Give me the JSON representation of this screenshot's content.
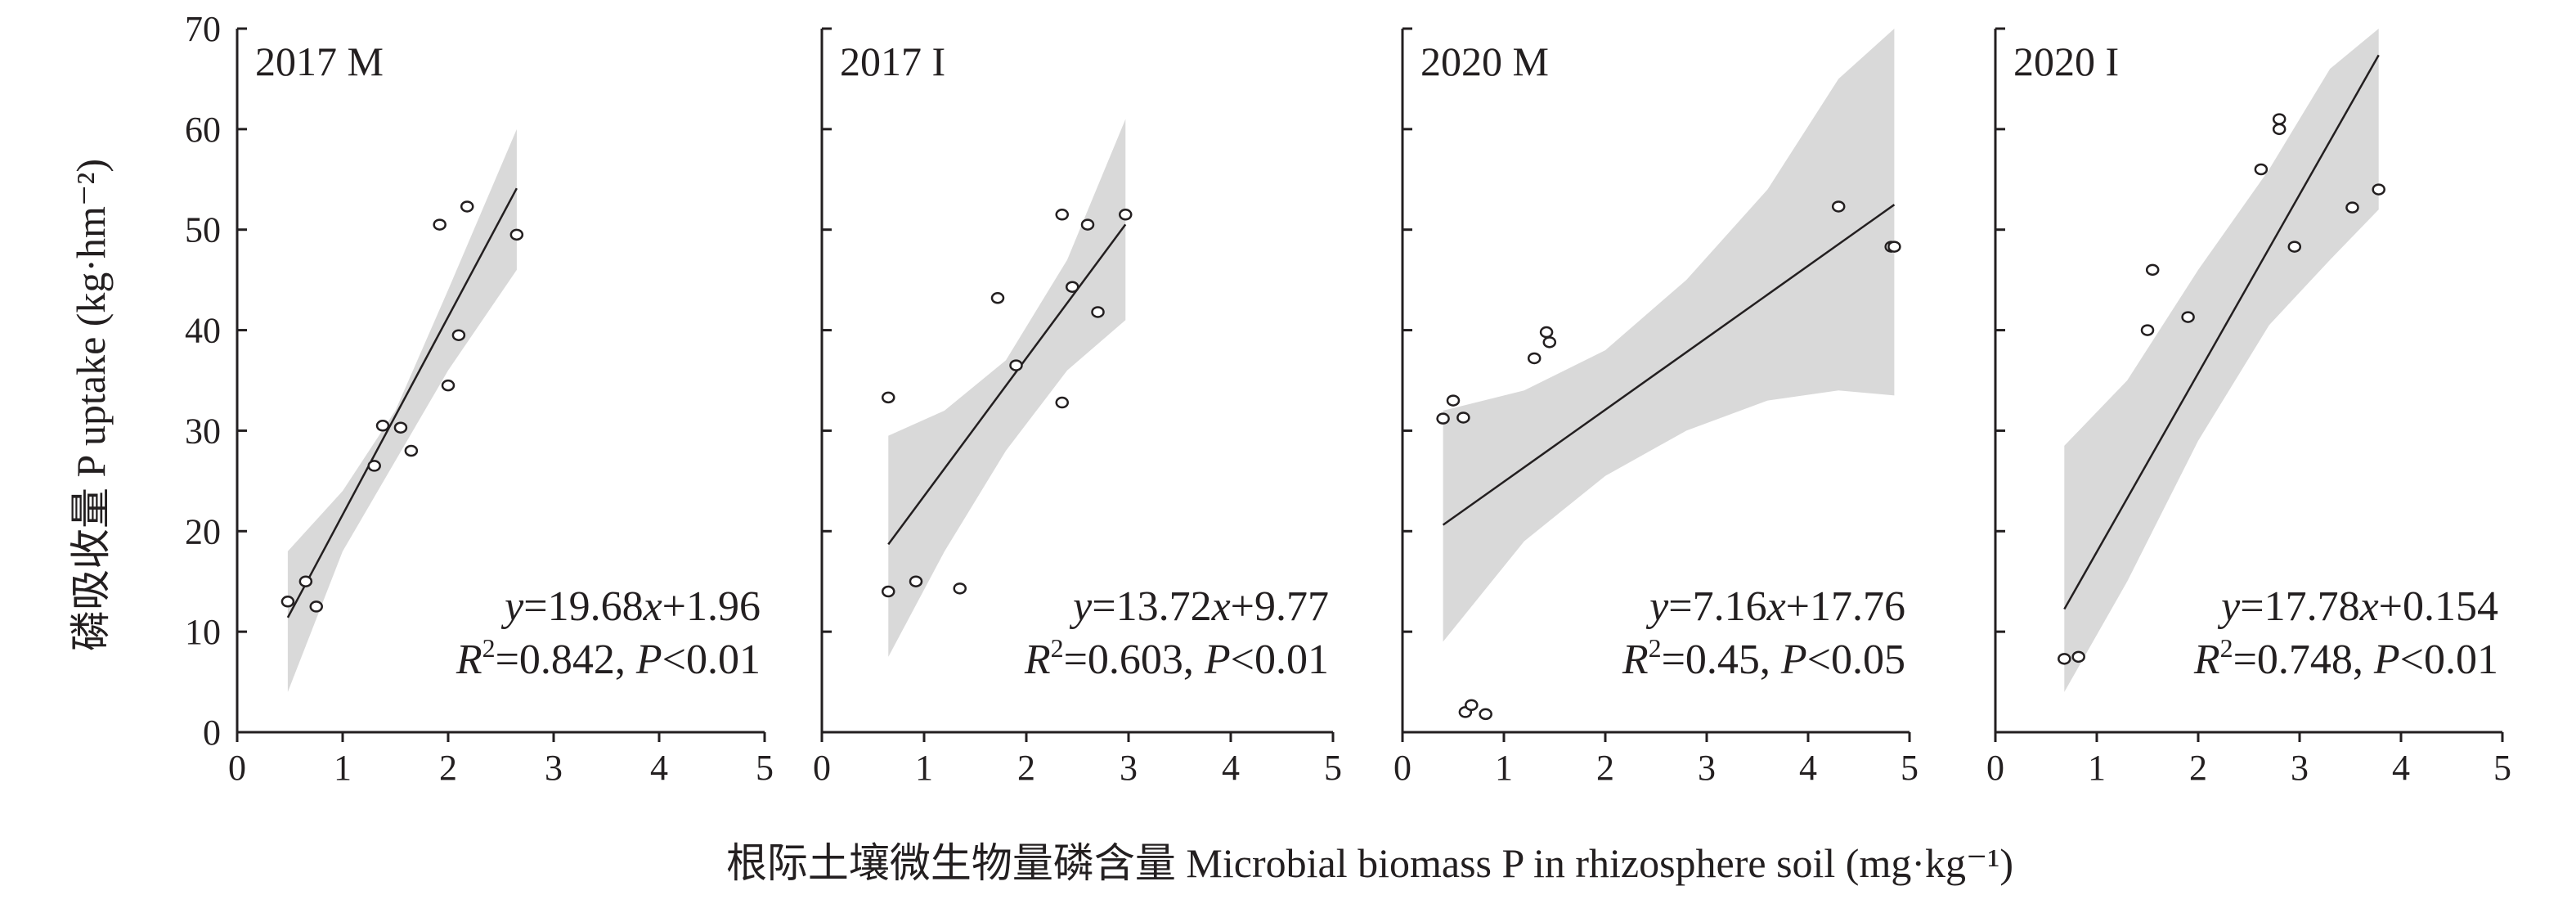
{
  "figure": {
    "ylabel": "磷吸收量 P uptake (kg·hm⁻²)",
    "xlabel": "根际土壤微生物量磷含量 Microbial biomass P in rhizosphere soil (mg·kg⁻¹)"
  },
  "chart_data": [
    {
      "type": "scatter",
      "title": "2017 M",
      "xlim": [
        0,
        5
      ],
      "ylim": [
        0,
        70
      ],
      "x_ticks": [
        0,
        1,
        2,
        3,
        4,
        5
      ],
      "y_ticks": [
        0,
        10,
        20,
        30,
        40,
        50,
        60,
        70
      ],
      "points": [
        [
          0.48,
          13
        ],
        [
          0.65,
          15
        ],
        [
          0.75,
          12.5
        ],
        [
          1.3,
          26.5
        ],
        [
          1.38,
          30.5
        ],
        [
          1.55,
          30.3
        ],
        [
          1.65,
          28
        ],
        [
          1.92,
          50.5
        ],
        [
          2.0,
          34.5
        ],
        [
          2.1,
          39.5
        ],
        [
          2.18,
          52.3
        ],
        [
          2.65,
          49.5
        ]
      ],
      "fit": {
        "slope": 19.68,
        "intercept": 1.96,
        "x_range": [
          0.48,
          2.65
        ]
      },
      "ci_band": {
        "x": [
          0.48,
          1.0,
          1.5,
          2.0,
          2.65
        ],
        "lower": [
          4,
          18,
          27,
          36,
          46
        ],
        "upper": [
          18,
          24,
          32,
          44,
          60
        ]
      },
      "equation": {
        "lhs": "y",
        "rhs_coef": "=19.68",
        "var": "x",
        "rhs_const": "+1.96"
      },
      "stats": {
        "r_label": "R",
        "r_exp": "2",
        "r_value": "=0.842, ",
        "p_label": "P",
        "p_value": "<0.01"
      }
    },
    {
      "type": "scatter",
      "title": "2017 I",
      "xlim": [
        0,
        5
      ],
      "ylim": [
        0,
        70
      ],
      "x_ticks": [
        0,
        1,
        2,
        3,
        4,
        5
      ],
      "points": [
        [
          0.65,
          33.3
        ],
        [
          0.65,
          14
        ],
        [
          0.92,
          15
        ],
        [
          1.35,
          14.3
        ],
        [
          1.72,
          43.2
        ],
        [
          1.9,
          36.5
        ],
        [
          2.35,
          32.8
        ],
        [
          2.35,
          51.5
        ],
        [
          2.45,
          44.3
        ],
        [
          2.6,
          50.5
        ],
        [
          2.7,
          41.8
        ],
        [
          2.97,
          51.5
        ]
      ],
      "fit": {
        "slope": 13.72,
        "intercept": 9.77,
        "x_range": [
          0.65,
          2.97
        ]
      },
      "ci_band": {
        "x": [
          0.65,
          1.2,
          1.8,
          2.4,
          2.97
        ],
        "lower": [
          7.5,
          18,
          28,
          36,
          41
        ],
        "upper": [
          29.5,
          32,
          37,
          47,
          61
        ]
      },
      "equation": {
        "lhs": "y",
        "rhs_coef": "=13.72",
        "var": "x",
        "rhs_const": "+9.77"
      },
      "stats": {
        "r_label": "R",
        "r_exp": "2",
        "r_value": "=0.603, ",
        "p_label": "P",
        "p_value": "<0.01"
      }
    },
    {
      "type": "scatter",
      "title": "2020 M",
      "xlim": [
        0,
        5
      ],
      "ylim": [
        0,
        70
      ],
      "x_ticks": [
        0,
        1,
        2,
        3,
        4,
        5
      ],
      "points": [
        [
          0.4,
          31.2
        ],
        [
          0.5,
          33
        ],
        [
          0.6,
          31.3
        ],
        [
          0.62,
          2
        ],
        [
          0.68,
          2.7
        ],
        [
          0.82,
          1.8
        ],
        [
          1.3,
          37.2
        ],
        [
          1.42,
          39.8
        ],
        [
          1.45,
          38.8
        ],
        [
          4.3,
          52.3
        ],
        [
          4.82,
          48.3
        ],
        [
          4.85,
          48.3
        ]
      ],
      "fit": {
        "slope": 7.16,
        "intercept": 17.76,
        "x_range": [
          0.4,
          4.85
        ]
      },
      "ci_band": {
        "x": [
          0.4,
          1.2,
          2.0,
          2.8,
          3.6,
          4.3,
          4.85
        ],
        "lower": [
          9,
          19,
          25.5,
          30,
          33,
          34,
          33.5
        ],
        "upper": [
          32,
          34,
          38,
          45,
          54,
          65,
          70
        ]
      },
      "equation": {
        "lhs": "y",
        "rhs_coef": "=7.16",
        "var": "x",
        "rhs_const": "+17.76"
      },
      "stats": {
        "r_label": "R",
        "r_exp": "2",
        "r_value": "=0.45, ",
        "p_label": "P",
        "p_value": "<0.05"
      }
    },
    {
      "type": "scatter",
      "title": "2020 I",
      "xlim": [
        0,
        5
      ],
      "ylim": [
        0,
        70
      ],
      "x_ticks": [
        0,
        1,
        2,
        3,
        4,
        5
      ],
      "points": [
        [
          0.68,
          7.3
        ],
        [
          0.82,
          7.5
        ],
        [
          1.5,
          40
        ],
        [
          1.55,
          46
        ],
        [
          1.9,
          41.3
        ],
        [
          2.62,
          56
        ],
        [
          2.8,
          60
        ],
        [
          2.8,
          61
        ],
        [
          2.95,
          48.3
        ],
        [
          3.52,
          52.2
        ],
        [
          3.78,
          54
        ]
      ],
      "fit": {
        "slope": 17.78,
        "intercept": 0.154,
        "x_range": [
          0.68,
          3.78
        ]
      },
      "ci_band": {
        "x": [
          0.68,
          1.3,
          2.0,
          2.7,
          3.3,
          3.78
        ],
        "lower": [
          4,
          15,
          29,
          40.5,
          47,
          52
        ],
        "upper": [
          28.5,
          35,
          46,
          56,
          66,
          70
        ]
      },
      "equation": {
        "lhs": "y",
        "rhs_coef": "=17.78",
        "var": "x",
        "rhs_const": "+0.154"
      },
      "stats": {
        "r_label": "R",
        "r_exp": "2",
        "r_value": "=0.748, ",
        "p_label": "P",
        "p_value": "<0.01"
      }
    }
  ]
}
